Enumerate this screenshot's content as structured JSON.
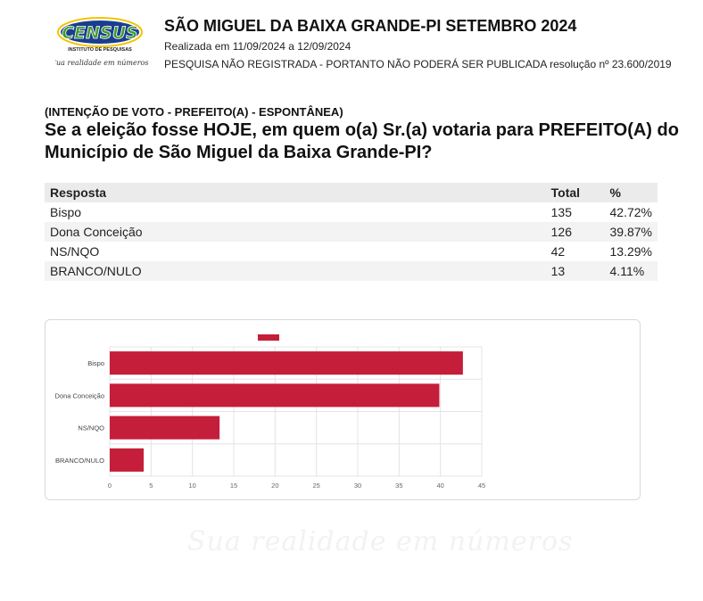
{
  "logo": {
    "name": "CENSUS",
    "subtitle": "INSTITUTO DE PESQUISAS",
    "slogan": "Sua realidade em números",
    "colors": {
      "blue": "#1b3d8f",
      "green": "#3c9a2f",
      "yellow": "#f2c500"
    }
  },
  "header": {
    "title": "SÃO MIGUEL DA BAIXA GRANDE-PI SETEMBRO 2024",
    "dates": "Realizada em 11/09/2024 a 12/09/2024",
    "notice": "PESQUISA NÃO REGISTRADA - PORTANTO NÃO PODERÁ SER PUBLICADA resolução nº 23.600/2019"
  },
  "question": {
    "tag": "(INTENÇÃO DE VOTO - PREFEITO(A) - ESPONTÂNEA)",
    "text": "Se a eleição fosse HOJE, em quem o(a) Sr.(a) votaria para PREFEITO(A) do Município de São Miguel da Baixa Grande-PI?"
  },
  "table": {
    "headers": [
      "Resposta",
      "Total",
      "%"
    ],
    "rows": [
      [
        "Bispo",
        "135",
        "42.72%"
      ],
      [
        "Dona Conceição",
        "126",
        "39.87%"
      ],
      [
        "NS/NQO",
        "42",
        "13.29%"
      ],
      [
        "BRANCO/NULO",
        "13",
        "4.11%"
      ]
    ]
  },
  "chart_data": {
    "type": "bar",
    "orientation": "horizontal",
    "categories": [
      "Bispo",
      "Dona Conceição",
      "NS/NQO",
      "BRANCO/NULO"
    ],
    "values": [
      42.72,
      39.87,
      13.29,
      4.11
    ],
    "xlim": [
      0,
      45
    ],
    "xticks": [
      "0",
      "5",
      "10",
      "15",
      "20",
      "25",
      "30",
      "35",
      "40",
      "45"
    ],
    "grid": true,
    "legend": "top-center",
    "color": "#c41e3a"
  },
  "watermark": "Sua realidade em números"
}
